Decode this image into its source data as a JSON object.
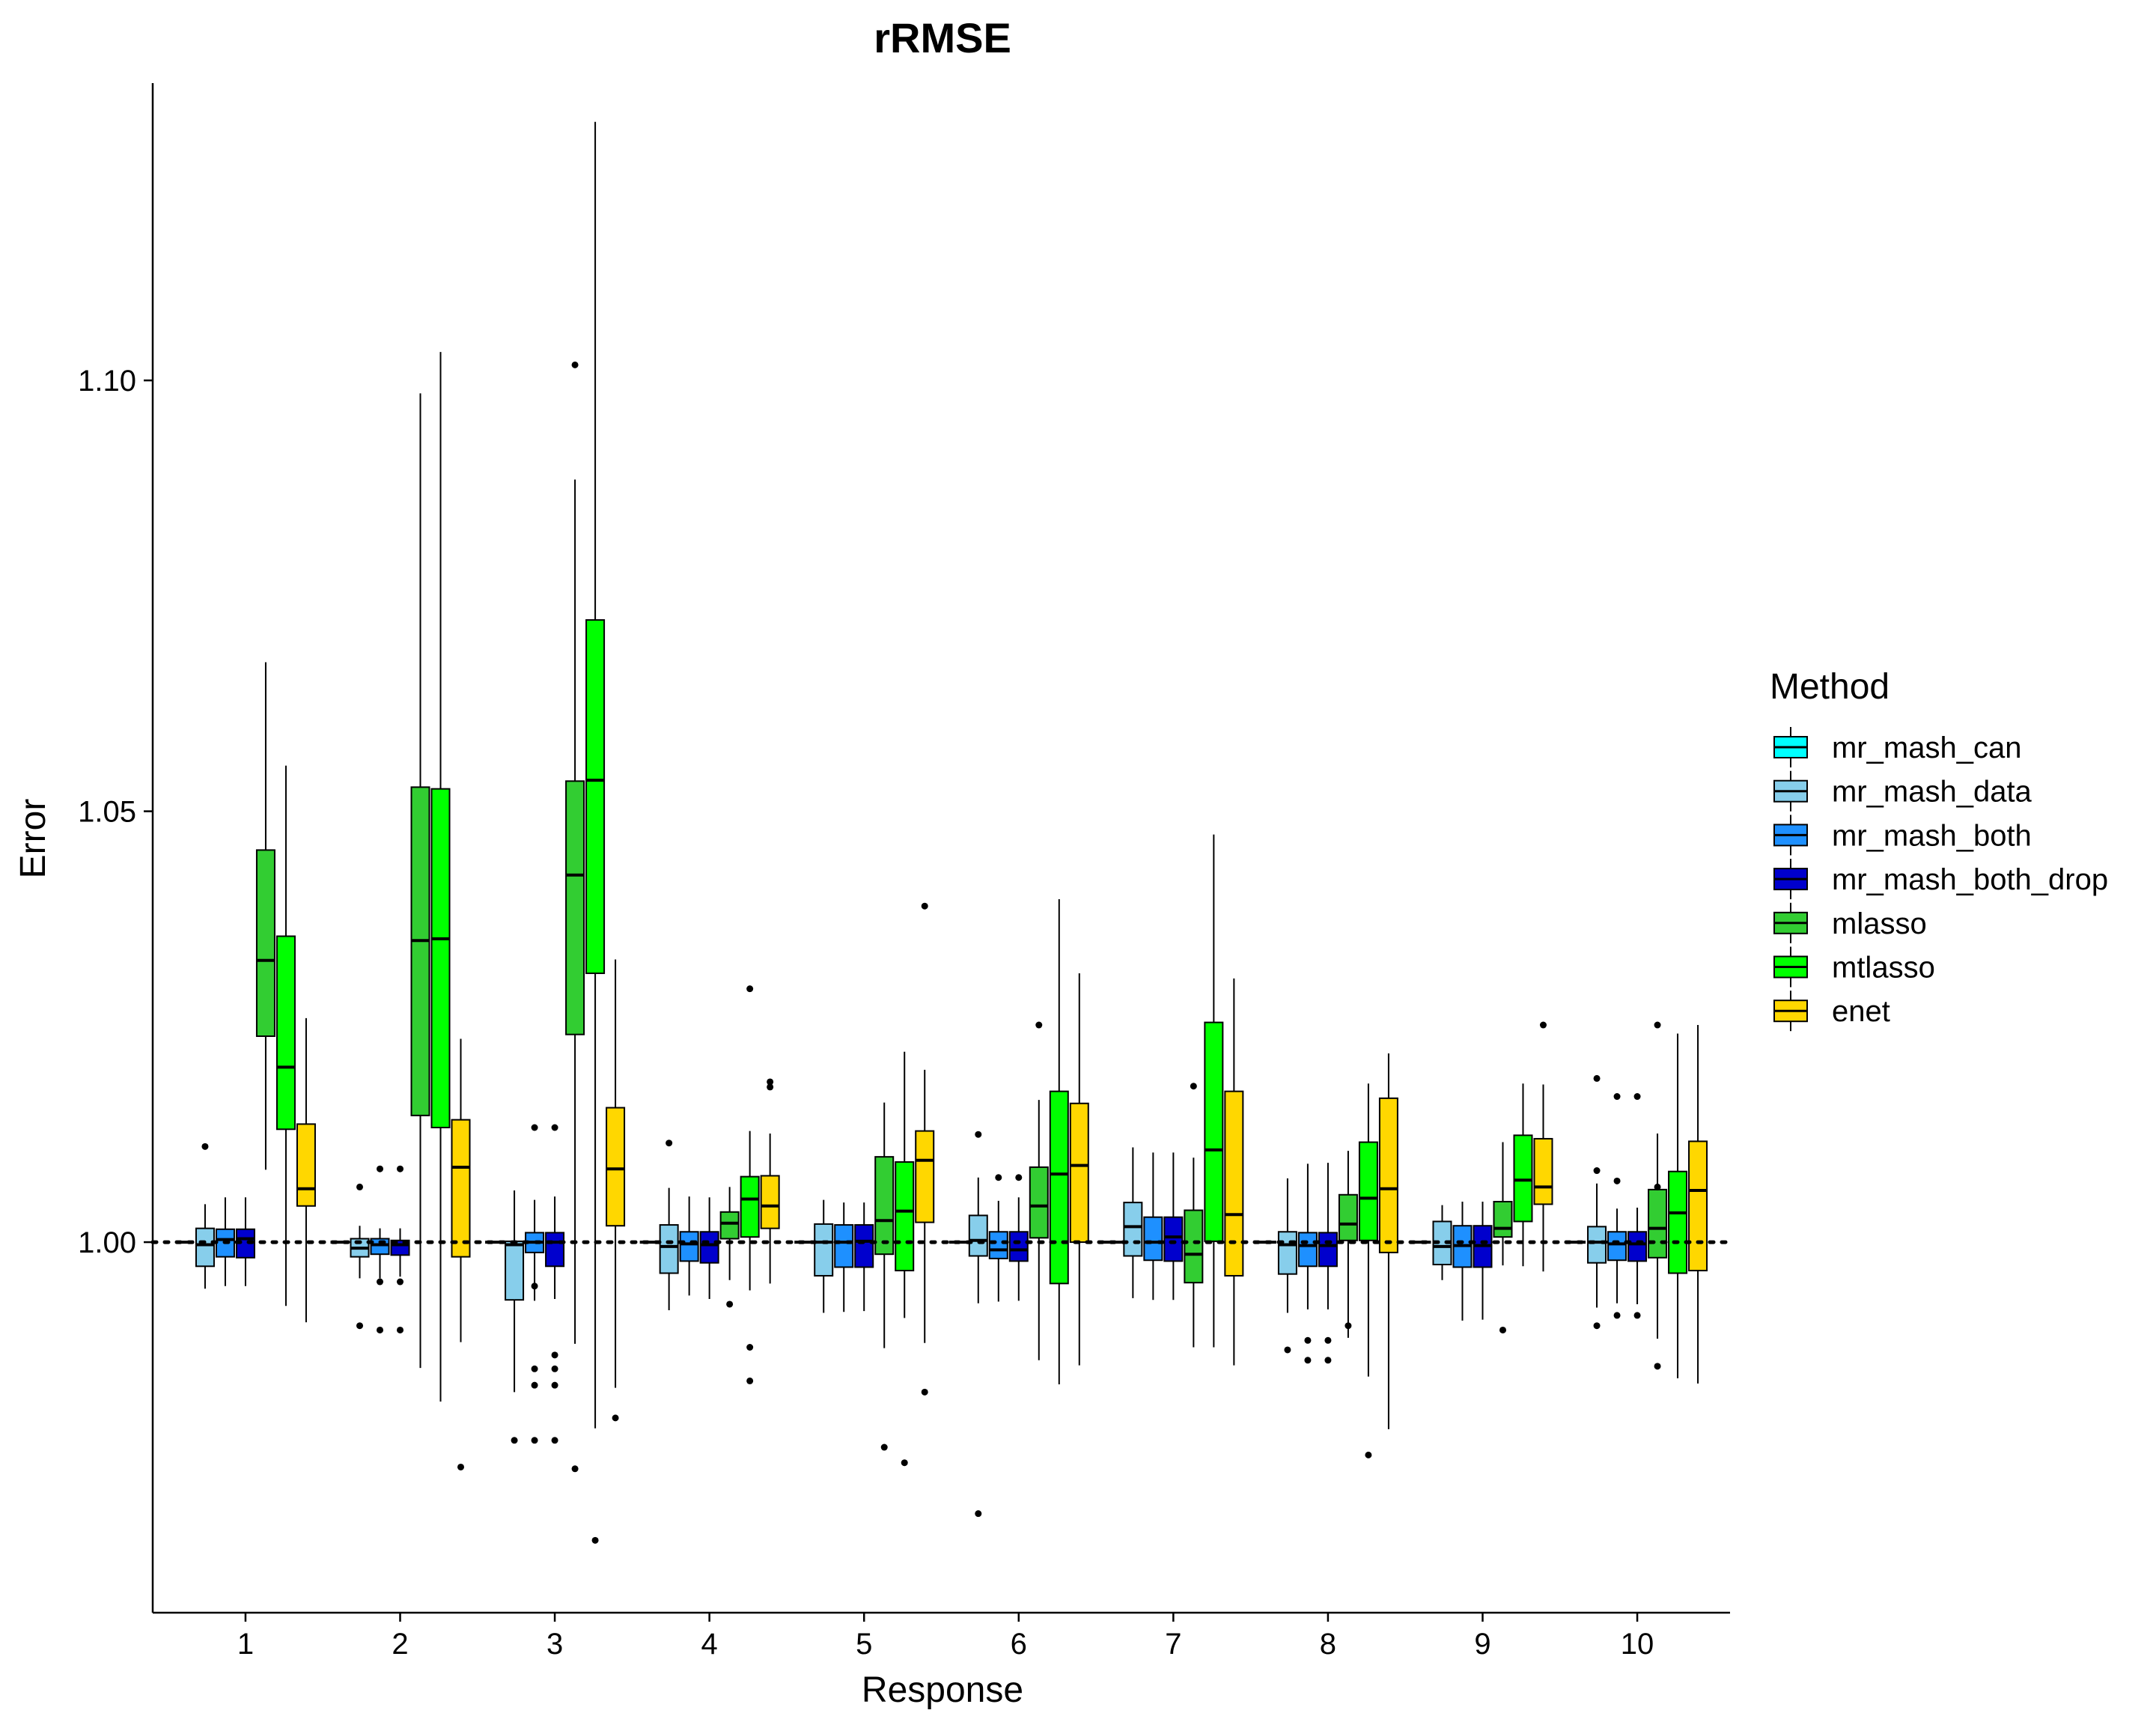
{
  "chart_data": {
    "type": "boxplot",
    "title": "rRMSE",
    "xlabel": "Response",
    "ylabel": "Error",
    "categories": [
      "1",
      "2",
      "3",
      "4",
      "5",
      "6",
      "7",
      "8",
      "9",
      "10"
    ],
    "y_ticks": [
      {
        "value": 1.0,
        "label": "1.00"
      },
      {
        "value": 1.05,
        "label": "1.05"
      },
      {
        "value": 1.1,
        "label": "1.10"
      }
    ],
    "ylim": [
      0.957,
      1.1345
    ],
    "reference_line": {
      "y": 1.0,
      "style": "dotted"
    },
    "grid": false,
    "legend": {
      "title": "Method",
      "position": "right"
    },
    "series": [
      {
        "name": "mr_mash_can",
        "color": "#00FFFF",
        "boxes": [
          [
            1,
            1,
            1,
            1,
            1
          ],
          [
            1,
            1,
            1,
            1,
            1
          ],
          [
            1,
            1,
            1,
            1,
            1
          ],
          [
            1,
            1,
            1,
            1,
            1
          ],
          [
            1,
            1,
            1,
            1,
            1
          ],
          [
            1,
            1,
            1,
            1,
            1
          ],
          [
            1,
            1,
            1,
            1,
            1
          ],
          [
            1,
            1,
            1,
            1,
            1
          ],
          [
            1,
            1,
            1,
            1,
            1
          ],
          [
            1,
            1,
            1,
            1,
            1
          ]
        ],
        "outliers": [
          [],
          [],
          [],
          [],
          [],
          [],
          [],
          [],
          [],
          []
        ]
      },
      {
        "name": "mr_mash_data",
        "color": "#87CEEB",
        "boxes": [
          [
            0.9946,
            0.9972,
            0.9997,
            1.0016,
            1.0044
          ],
          [
            0.9958,
            0.9983,
            0.9993,
            1.0004,
            1.0019
          ],
          [
            0.9826,
            0.9933,
            0.9997,
            1.0001,
            1.006
          ],
          [
            0.9921,
            0.9964,
            0.9995,
            1.002,
            1.0063
          ],
          [
            0.9918,
            0.9961,
            1.0,
            1.0021,
            1.0049
          ],
          [
            0.9929,
            0.9984,
            1.0002,
            1.0031,
            1.0075
          ],
          [
            0.9935,
            0.9984,
            1.0018,
            1.0046,
            1.011
          ],
          [
            0.9918,
            0.9963,
            0.9997,
            1.0012,
            1.0074
          ],
          [
            0.9956,
            0.9974,
            0.9995,
            1.0024,
            1.0043
          ],
          [
            0.9924,
            0.9976,
            1.0,
            1.0018,
            1.0068
          ]
        ],
        "outliers": [
          [
            1.0111
          ],
          [
            1.0064,
            0.9903
          ],
          [
            0.977
          ],
          [
            1.0115
          ],
          [],
          [
            1.0125,
            0.9685
          ],
          [],
          [
            0.9875
          ],
          [],
          [
            1.019,
            1.0083,
            0.9903
          ]
        ]
      },
      {
        "name": "mr_mash_both",
        "color": "#1E90FF",
        "boxes": [
          [
            0.9949,
            0.9983,
            1.0003,
            1.0015,
            1.0052
          ],
          [
            0.9958,
            0.9986,
            0.9997,
            1.0004,
            1.0016
          ],
          [
            0.9932,
            0.9988,
            1.0,
            1.0011,
            1.0049
          ],
          [
            0.9938,
            0.9978,
            0.9998,
            1.0012,
            1.0053
          ],
          [
            0.9919,
            0.9971,
            1.0,
            1.002,
            1.0046
          ],
          [
            0.9931,
            0.9981,
            0.9991,
            1.0012,
            1.0048
          ],
          [
            0.9933,
            0.9979,
            1.0,
            1.0029,
            1.0104
          ],
          [
            0.9922,
            0.9972,
            0.9996,
            1.0011,
            1.0091
          ],
          [
            0.9909,
            0.9971,
            0.9996,
            1.0019,
            1.0047
          ],
          [
            0.9929,
            0.9979,
            0.9998,
            1.0012,
            1.0039
          ]
        ],
        "outliers": [
          [],
          [
            1.0085,
            0.9898,
            0.9954
          ],
          [
            0.9853,
            0.9834,
            0.9949,
            1.0133,
            0.977
          ],
          [],
          [],
          [
            1.0075
          ],
          [],
          [
            0.9863,
            0.9886
          ],
          [],
          [
            1.0071,
            1.0169,
            0.9915
          ]
        ]
      },
      {
        "name": "mr_mash_both_drop",
        "color": "#0000CD",
        "boxes": [
          [
            0.9949,
            0.9982,
            1.0004,
            1.0015,
            1.0052
          ],
          [
            0.996,
            0.9985,
            0.9997,
            1.0002,
            1.0016
          ],
          [
            0.9934,
            0.9972,
            1.0,
            1.0011,
            1.0053
          ],
          [
            0.9934,
            0.9976,
            0.9997,
            1.0012,
            1.0052
          ],
          [
            0.992,
            0.9971,
            1.0001,
            1.002,
            1.0046
          ],
          [
            0.9932,
            0.9978,
            0.9991,
            1.0012,
            1.0052
          ],
          [
            0.9933,
            0.9978,
            1.0006,
            1.0029,
            1.0104
          ],
          [
            0.9922,
            0.9972,
            0.9996,
            1.0011,
            1.0092
          ],
          [
            0.991,
            0.9971,
            0.9996,
            1.0019,
            1.0047
          ],
          [
            0.9928,
            0.9978,
            0.9998,
            1.0012,
            1.004
          ]
        ],
        "outliers": [
          [],
          [
            1.0085,
            0.9898,
            0.9954
          ],
          [
            0.9853,
            0.9834,
            0.9869,
            1.0133,
            0.977
          ],
          [],
          [],
          [
            1.0075
          ],
          [],
          [
            0.9863,
            0.9886
          ],
          [],
          [
            1.0169,
            0.9915
          ]
        ]
      },
      {
        "name": "mlasso",
        "color": "#32CD32",
        "boxes": [
          [
            1.0084,
            1.0239,
            1.0327,
            1.0455,
            1.0673
          ],
          [
            0.9854,
            1.0147,
            1.035,
            1.0528,
            1.0985
          ],
          [
            0.9882,
            1.0241,
            1.0426,
            1.0535,
            1.0885
          ],
          [
            0.9956,
            1.0004,
            1.0022,
            1.0035,
            1.0064
          ],
          [
            0.9877,
            0.9986,
            1.0025,
            1.0099,
            1.0162
          ],
          [
            0.9863,
            1.0005,
            1.0042,
            1.0087,
            1.0165
          ],
          [
            0.9878,
            0.9953,
            0.9986,
            1.0037,
            1.0098
          ],
          [
            0.9889,
            1.0002,
            1.0021,
            1.0055,
            1.0106
          ],
          [
            0.9973,
            1.0006,
            1.0016,
            1.0047,
            1.0116
          ],
          [
            0.9888,
            0.9982,
            1.0016,
            1.0061,
            1.0126
          ]
        ],
        "outliers": [
          [],
          [],
          [
            1.1018,
            0.9737
          ],
          [
            0.9928
          ],
          [
            0.9762
          ],
          [
            1.0252
          ],
          [
            1.0181
          ],
          [
            0.9903
          ],
          [
            0.9898
          ],
          [
            1.0252,
            0.9856,
            1.0064
          ]
        ]
      },
      {
        "name": "mtlasso",
        "color": "#00FF00",
        "boxes": [
          [
            0.9926,
            1.0131,
            1.0203,
            1.0355,
            1.0553
          ],
          [
            0.9815,
            1.0133,
            1.0352,
            1.0526,
            1.1033
          ],
          [
            0.9784,
            1.0312,
            1.0536,
            1.0722,
            1.13
          ],
          [
            0.9944,
            1.0006,
            1.005,
            1.0076,
            1.0129
          ],
          [
            0.9912,
            0.9967,
            1.0036,
            1.0093,
            1.0221
          ],
          [
            0.9835,
            0.9952,
            1.0079,
            1.0175,
            1.0398
          ],
          [
            0.9878,
            1.0001,
            1.0107,
            1.0255,
            1.0473
          ],
          [
            0.9844,
            1.0002,
            1.0051,
            1.0116,
            1.0184
          ],
          [
            0.9972,
            1.0024,
            1.0072,
            1.0124,
            1.0184
          ],
          [
            0.9842,
            0.9964,
            1.0034,
            1.0082,
            1.0242
          ]
        ],
        "outliers": [
          [],
          [],
          [
            0.9654
          ],
          [
            1.0294,
            0.9878,
            0.9839
          ],
          [
            0.9744
          ],
          [],
          [],
          [
            0.9753
          ],
          [],
          []
        ]
      },
      {
        "name": "enet",
        "color": "#FFD700",
        "boxes": [
          [
            0.9907,
            1.0042,
            1.0062,
            1.0137,
            1.026
          ],
          [
            0.9884,
            0.9983,
            1.0087,
            1.0142,
            1.0236
          ],
          [
            0.9831,
            1.0019,
            1.0085,
            1.0156,
            1.0328
          ],
          [
            0.9952,
            1.0016,
            1.0042,
            1.0077,
            1.0126
          ],
          [
            0.9883,
            1.0023,
            1.0095,
            1.0129,
            1.02
          ],
          [
            0.9857,
            1.0,
            1.0089,
            1.0161,
            1.0312
          ],
          [
            0.9857,
            0.9961,
            1.0032,
            1.0175,
            1.0306
          ],
          [
            0.9783,
            0.9988,
            1.0062,
            1.0167,
            1.0219
          ],
          [
            0.9966,
            1.0044,
            1.0064,
            1.012,
            1.0183
          ],
          [
            0.9836,
            0.9967,
            1.006,
            1.0117,
            1.0252
          ]
        ],
        "outliers": [
          [],
          [
            0.9739
          ],
          [
            0.9796
          ],
          [
            1.0186,
            1.018
          ],
          [
            0.9826,
            1.039
          ],
          [],
          [],
          [],
          [
            1.0252
          ],
          []
        ]
      }
    ]
  }
}
